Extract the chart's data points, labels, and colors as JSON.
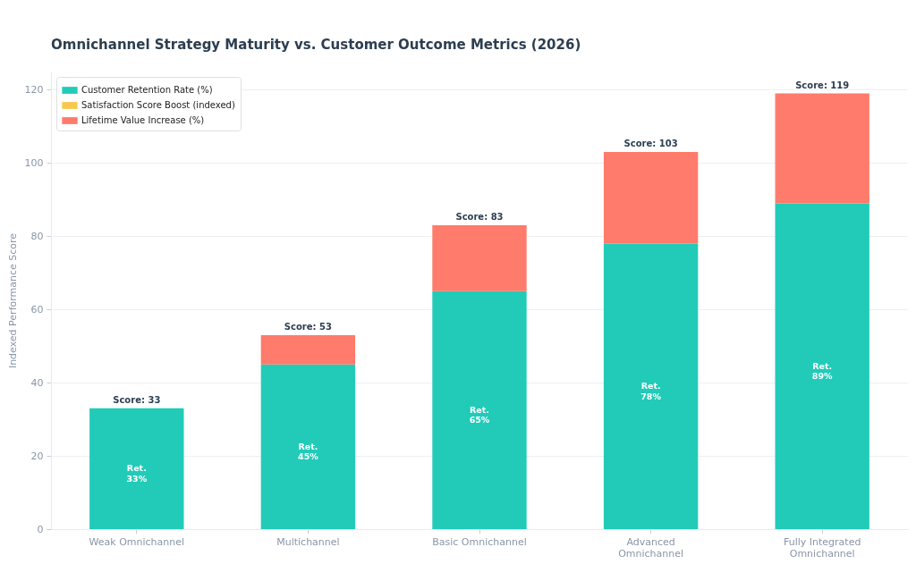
{
  "chart_data": {
    "type": "bar",
    "title": "Omnichannel Strategy Maturity vs. Customer Outcome Metrics (2026)",
    "ylabel": "Indexed Performance Score",
    "categories": [
      "Weak Omnichannel",
      "Multichannel",
      "Basic Omnichannel",
      "Advanced Omnichannel",
      "Fully Integrated Omnichannel"
    ],
    "stacked": true,
    "series": [
      {
        "name": "Customer Retention Rate (%)",
        "color": "#21cbb8",
        "values": [
          33,
          45,
          65,
          78,
          89
        ],
        "value_labels": [
          "Ret.\n33%",
          "Ret.\n45%",
          "Ret.\n65%",
          "Ret.\n78%",
          "Ret.\n89%"
        ]
      },
      {
        "name": "Satisfaction Score Boost (indexed)",
        "color": "#f9c74f",
        "values": [
          null,
          null,
          null,
          null,
          null
        ]
      },
      {
        "name": "Lifetime Value Increase (%)",
        "color": "#ff7b6b",
        "values": [
          null,
          8,
          18,
          25,
          30
        ]
      }
    ],
    "totals": [
      "Score: 33",
      "Score: 53",
      "Score: 83",
      "Score: 103",
      "Score: 119"
    ],
    "ylim": [
      0,
      125
    ],
    "yticks": [
      0,
      20,
      40,
      60,
      80,
      100,
      120
    ],
    "grid": "y",
    "legend": "top left"
  }
}
